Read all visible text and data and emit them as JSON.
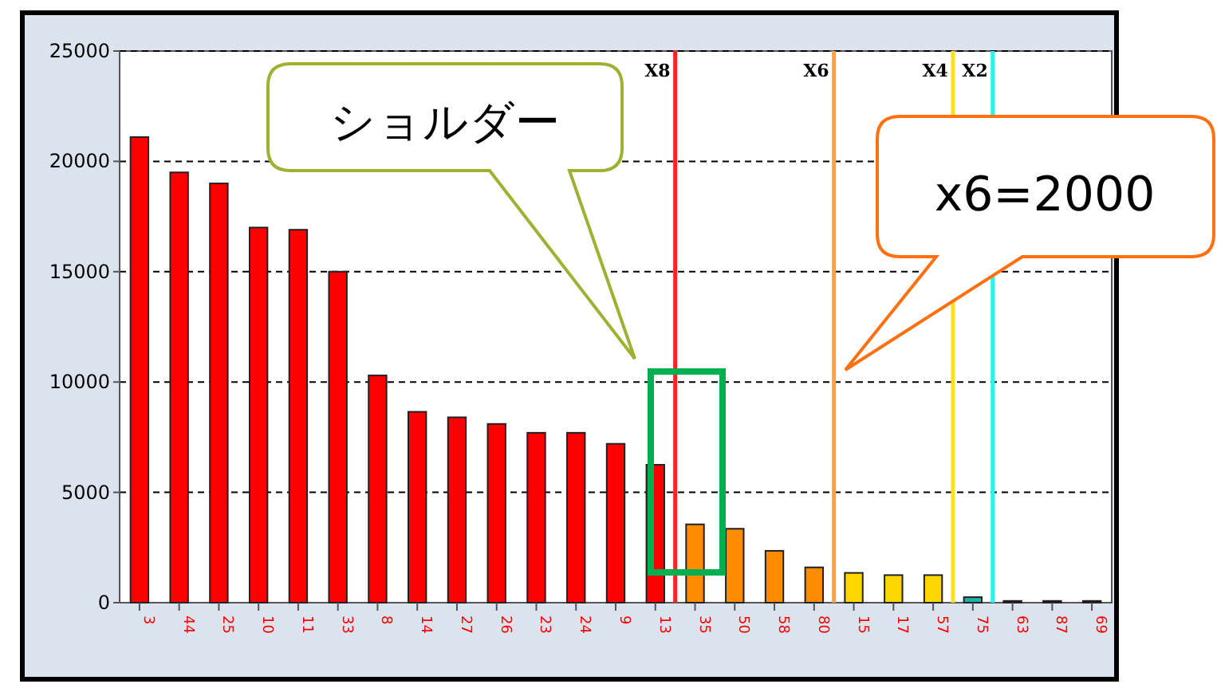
{
  "chart_data": {
    "type": "bar",
    "categories": [
      "3",
      "44",
      "25",
      "10",
      "11",
      "33",
      "8",
      "14",
      "27",
      "26",
      "23",
      "24",
      "9",
      "13",
      "35",
      "50",
      "58",
      "80",
      "15",
      "17",
      "57",
      "75",
      "63",
      "87",
      "69"
    ],
    "values": [
      21100,
      19500,
      19000,
      17000,
      16900,
      15000,
      10300,
      8650,
      8400,
      8100,
      7700,
      7700,
      7200,
      6250,
      3550,
      3350,
      2350,
      1600,
      1350,
      1250,
      1250,
      250,
      80,
      80,
      80
    ],
    "colors": [
      "#ff0000",
      "#ff0000",
      "#ff0000",
      "#ff0000",
      "#ff0000",
      "#ff0000",
      "#ff0000",
      "#ff0000",
      "#ff0000",
      "#ff0000",
      "#ff0000",
      "#ff0000",
      "#ff0000",
      "#ff0000",
      "#ff8c00",
      "#ff8c00",
      "#ff8c00",
      "#ff8c00",
      "#ffd700",
      "#ffd700",
      "#ffd700",
      "#20b2aa",
      "#000000",
      "#000000",
      "#000000"
    ],
    "ylim": [
      0,
      25000
    ],
    "yticks": [
      0,
      5000,
      10000,
      15000,
      20000,
      25000
    ],
    "grid": "y",
    "ref_lines": [
      {
        "axis": "x",
        "value": "13",
        "label": "X8",
        "color": "#ff2020"
      },
      {
        "axis": "x",
        "value": "80",
        "label": "X6",
        "color": "#ffa040"
      },
      {
        "axis": "x",
        "value": "57",
        "label": "X4",
        "color": "#ffe020"
      },
      {
        "axis": "x",
        "value": "75",
        "label": "X2",
        "color": "#30f0f0"
      }
    ],
    "annotations": [
      "ショルダー",
      "x6=2000"
    ]
  }
}
